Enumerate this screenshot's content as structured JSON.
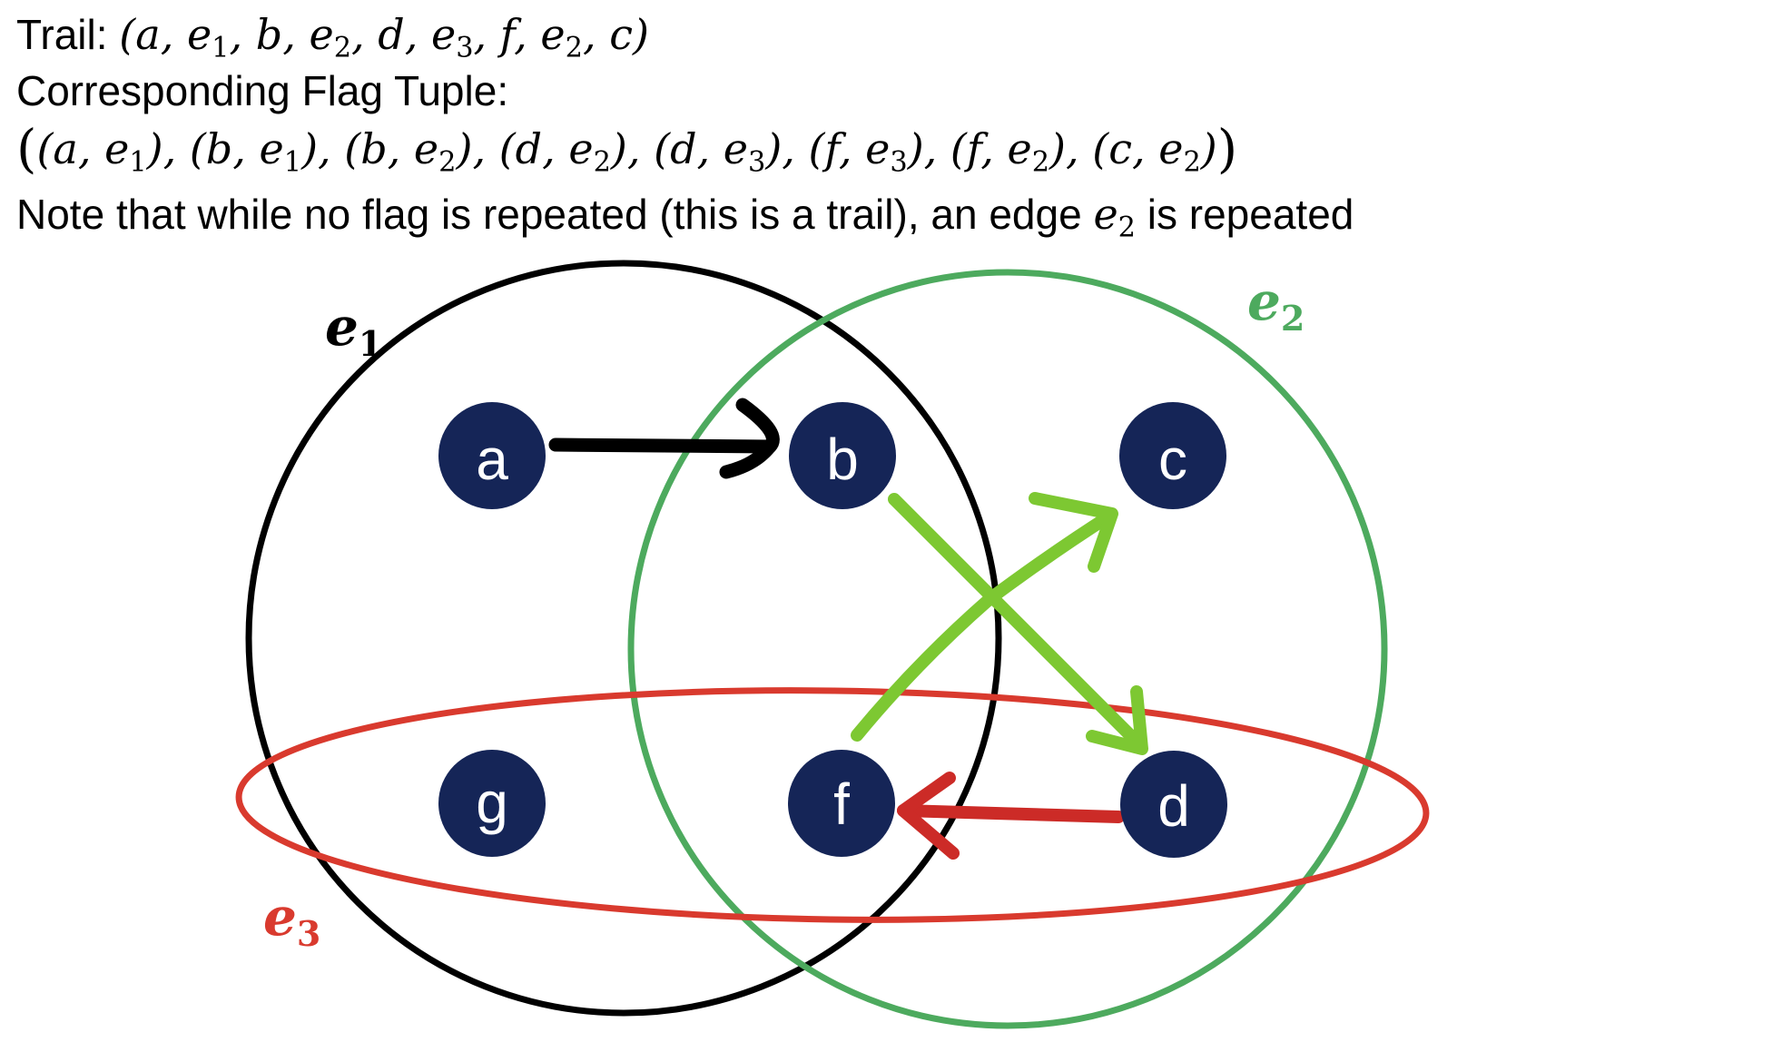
{
  "header": {
    "trail_label": "Trail: ",
    "trail": [
      {
        "t": "v",
        "v": "a"
      },
      {
        "t": "e",
        "v": "e",
        "s": "1"
      },
      {
        "t": "v",
        "v": "b"
      },
      {
        "t": "e",
        "v": "e",
        "s": "2"
      },
      {
        "t": "v",
        "v": "d"
      },
      {
        "t": "e",
        "v": "e",
        "s": "3"
      },
      {
        "t": "v",
        "v": "f"
      },
      {
        "t": "e",
        "v": "e",
        "s": "2"
      },
      {
        "t": "v",
        "v": "c"
      }
    ],
    "flag_label": "Corresponding Flag Tuple:",
    "flags": [
      {
        "v": "a",
        "e": "e",
        "s": "1"
      },
      {
        "v": "b",
        "e": "e",
        "s": "1"
      },
      {
        "v": "b",
        "e": "e",
        "s": "2"
      },
      {
        "v": "d",
        "e": "e",
        "s": "2"
      },
      {
        "v": "d",
        "e": "e",
        "s": "3"
      },
      {
        "v": "f",
        "e": "e",
        "s": "3"
      },
      {
        "v": "f",
        "e": "e",
        "s": "2"
      },
      {
        "v": "c",
        "e": "e",
        "s": "2"
      }
    ],
    "note_before": "Note that while no flag is repeated (this is a trail), an edge ",
    "note_edge": "e",
    "note_edge_sub": "2",
    "note_after": " is repeated"
  },
  "colors": {
    "node_fill": "#152557",
    "e1": "#000000",
    "e2": "#4daa5e",
    "e3": "#d93a2e",
    "arrow_black": "#000000",
    "arrow_green": "#7dc832",
    "arrow_red": "#cc2b27"
  },
  "hyperedges": [
    {
      "id": "e1",
      "name": "e",
      "sub": "1",
      "members": [
        "a",
        "b",
        "g",
        "f"
      ]
    },
    {
      "id": "e2",
      "name": "e",
      "sub": "2",
      "members": [
        "b",
        "c",
        "f",
        "d"
      ]
    },
    {
      "id": "e3",
      "name": "e",
      "sub": "3",
      "members": [
        "g",
        "f",
        "d"
      ]
    }
  ],
  "nodes": [
    "a",
    "b",
    "c",
    "g",
    "f",
    "d"
  ],
  "arrows": [
    {
      "from": "a",
      "to": "b",
      "via": "e1"
    },
    {
      "from": "b",
      "to": "d",
      "via": "e2"
    },
    {
      "from": "d",
      "to": "f",
      "via": "e3"
    },
    {
      "from": "f",
      "to": "c",
      "via": "e2"
    }
  ]
}
